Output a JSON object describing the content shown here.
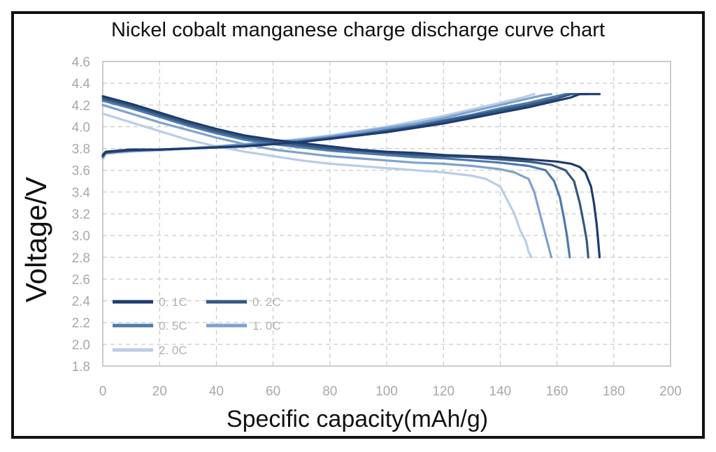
{
  "chart_data": {
    "type": "line",
    "title": "Nickel cobalt manganese charge discharge curve chart",
    "xlabel": "Specific capacity(mAh/g)",
    "ylabel": "Voltage/V",
    "xlim": [
      0,
      200
    ],
    "ylim": [
      1.8,
      4.6
    ],
    "xticks": [
      0,
      20,
      40,
      60,
      80,
      100,
      120,
      140,
      160,
      180,
      200
    ],
    "yticks": [
      1.8,
      2.0,
      2.2,
      2.4,
      2.6,
      2.8,
      3.0,
      3.2,
      3.4,
      3.6,
      3.8,
      4.0,
      4.2,
      4.4,
      4.6
    ],
    "grid": true,
    "legend_position": "bottom-left",
    "series": [
      {
        "name": "0. 1C",
        "color": "#1e3b6f",
        "discharge": [
          [
            0,
            4.28
          ],
          [
            10,
            4.21
          ],
          [
            20,
            4.13
          ],
          [
            30,
            4.05
          ],
          [
            40,
            3.98
          ],
          [
            50,
            3.92
          ],
          [
            60,
            3.88
          ],
          [
            70,
            3.85
          ],
          [
            80,
            3.82
          ],
          [
            90,
            3.79
          ],
          [
            100,
            3.77
          ],
          [
            110,
            3.76
          ],
          [
            120,
            3.74
          ],
          [
            130,
            3.73
          ],
          [
            140,
            3.72
          ],
          [
            150,
            3.7
          ],
          [
            160,
            3.68
          ],
          [
            165,
            3.66
          ],
          [
            168,
            3.63
          ],
          [
            170,
            3.58
          ],
          [
            172,
            3.45
          ],
          [
            173,
            3.3
          ],
          [
            174,
            3.1
          ],
          [
            174.5,
            2.95
          ],
          [
            175,
            2.8
          ]
        ],
        "charge": [
          [
            0,
            3.74
          ],
          [
            1,
            3.77
          ],
          [
            5,
            3.78
          ],
          [
            10,
            3.79
          ],
          [
            20,
            3.79
          ],
          [
            30,
            3.8
          ],
          [
            40,
            3.81
          ],
          [
            50,
            3.82
          ],
          [
            60,
            3.84
          ],
          [
            70,
            3.86
          ],
          [
            80,
            3.89
          ],
          [
            90,
            3.92
          ],
          [
            100,
            3.95
          ],
          [
            110,
            3.99
          ],
          [
            120,
            4.03
          ],
          [
            130,
            4.08
          ],
          [
            140,
            4.13
          ],
          [
            150,
            4.18
          ],
          [
            160,
            4.24
          ],
          [
            165,
            4.27
          ],
          [
            168,
            4.3
          ],
          [
            175,
            4.3
          ]
        ]
      },
      {
        "name": "0. 2C",
        "color": "#34597f",
        "discharge": [
          [
            0,
            4.26
          ],
          [
            10,
            4.19
          ],
          [
            20,
            4.11
          ],
          [
            30,
            4.03
          ],
          [
            40,
            3.96
          ],
          [
            50,
            3.9
          ],
          [
            60,
            3.86
          ],
          [
            70,
            3.83
          ],
          [
            80,
            3.8
          ],
          [
            90,
            3.78
          ],
          [
            100,
            3.76
          ],
          [
            110,
            3.74
          ],
          [
            120,
            3.73
          ],
          [
            130,
            3.72
          ],
          [
            140,
            3.7
          ],
          [
            150,
            3.68
          ],
          [
            158,
            3.65
          ],
          [
            163,
            3.6
          ],
          [
            166,
            3.5
          ],
          [
            168,
            3.3
          ],
          [
            169.5,
            3.1
          ],
          [
            170.5,
            2.95
          ],
          [
            171,
            2.8
          ]
        ],
        "charge": [
          [
            0,
            3.73
          ],
          [
            1,
            3.76
          ],
          [
            5,
            3.77
          ],
          [
            10,
            3.78
          ],
          [
            20,
            3.79
          ],
          [
            30,
            3.8
          ],
          [
            40,
            3.81
          ],
          [
            50,
            3.82
          ],
          [
            60,
            3.84
          ],
          [
            70,
            3.86
          ],
          [
            80,
            3.89
          ],
          [
            90,
            3.92
          ],
          [
            100,
            3.96
          ],
          [
            110,
            4.0
          ],
          [
            120,
            4.05
          ],
          [
            130,
            4.1
          ],
          [
            140,
            4.15
          ],
          [
            150,
            4.2
          ],
          [
            160,
            4.26
          ],
          [
            165,
            4.3
          ],
          [
            171,
            4.3
          ]
        ]
      },
      {
        "name": "0. 5C",
        "color": "#4d79ad",
        "discharge": [
          [
            0,
            4.24
          ],
          [
            10,
            4.17
          ],
          [
            20,
            4.09
          ],
          [
            30,
            4.01
          ],
          [
            40,
            3.94
          ],
          [
            50,
            3.88
          ],
          [
            60,
            3.84
          ],
          [
            70,
            3.81
          ],
          [
            80,
            3.78
          ],
          [
            90,
            3.76
          ],
          [
            100,
            3.74
          ],
          [
            110,
            3.72
          ],
          [
            120,
            3.71
          ],
          [
            130,
            3.69
          ],
          [
            140,
            3.67
          ],
          [
            150,
            3.64
          ],
          [
            156,
            3.6
          ],
          [
            159,
            3.5
          ],
          [
            161,
            3.35
          ],
          [
            162.5,
            3.15
          ],
          [
            163.5,
            3.0
          ],
          [
            164,
            2.9
          ],
          [
            164.5,
            2.8
          ]
        ],
        "charge": [
          [
            0,
            3.72
          ],
          [
            1,
            3.76
          ],
          [
            5,
            3.77
          ],
          [
            10,
            3.78
          ],
          [
            20,
            3.79
          ],
          [
            30,
            3.8
          ],
          [
            40,
            3.81
          ],
          [
            50,
            3.83
          ],
          [
            60,
            3.85
          ],
          [
            70,
            3.87
          ],
          [
            80,
            3.9
          ],
          [
            90,
            3.93
          ],
          [
            100,
            3.97
          ],
          [
            110,
            4.01
          ],
          [
            120,
            4.06
          ],
          [
            130,
            4.11
          ],
          [
            140,
            4.17
          ],
          [
            150,
            4.22
          ],
          [
            158,
            4.27
          ],
          [
            163,
            4.3
          ],
          [
            165,
            4.3
          ]
        ]
      },
      {
        "name": "1. 0C",
        "color": "#7fa2cf",
        "discharge": [
          [
            0,
            4.2
          ],
          [
            10,
            4.12
          ],
          [
            20,
            4.04
          ],
          [
            30,
            3.97
          ],
          [
            40,
            3.9
          ],
          [
            50,
            3.84
          ],
          [
            60,
            3.79
          ],
          [
            70,
            3.76
          ],
          [
            80,
            3.73
          ],
          [
            90,
            3.71
          ],
          [
            100,
            3.69
          ],
          [
            110,
            3.67
          ],
          [
            120,
            3.66
          ],
          [
            130,
            3.64
          ],
          [
            140,
            3.61
          ],
          [
            145,
            3.58
          ],
          [
            150,
            3.52
          ],
          [
            152,
            3.4
          ],
          [
            154,
            3.2
          ],
          [
            156,
            3.0
          ],
          [
            157,
            2.9
          ],
          [
            158,
            2.8
          ]
        ],
        "charge": [
          [
            0,
            3.72
          ],
          [
            1,
            3.76
          ],
          [
            5,
            3.77
          ],
          [
            10,
            3.78
          ],
          [
            20,
            3.79
          ],
          [
            30,
            3.8
          ],
          [
            40,
            3.82
          ],
          [
            50,
            3.84
          ],
          [
            60,
            3.86
          ],
          [
            70,
            3.88
          ],
          [
            80,
            3.91
          ],
          [
            90,
            3.95
          ],
          [
            100,
            3.99
          ],
          [
            110,
            4.03
          ],
          [
            120,
            4.08
          ],
          [
            130,
            4.14
          ],
          [
            140,
            4.2
          ],
          [
            150,
            4.26
          ],
          [
            155,
            4.29
          ],
          [
            158,
            4.3
          ]
        ]
      },
      {
        "name": "2. 0C",
        "color": "#b9cde6",
        "discharge": [
          [
            0,
            4.12
          ],
          [
            10,
            4.04
          ],
          [
            20,
            3.96
          ],
          [
            30,
            3.88
          ],
          [
            40,
            3.82
          ],
          [
            50,
            3.77
          ],
          [
            60,
            3.73
          ],
          [
            70,
            3.69
          ],
          [
            80,
            3.66
          ],
          [
            90,
            3.64
          ],
          [
            100,
            3.62
          ],
          [
            110,
            3.6
          ],
          [
            120,
            3.58
          ],
          [
            130,
            3.55
          ],
          [
            135,
            3.52
          ],
          [
            140,
            3.45
          ],
          [
            142,
            3.35
          ],
          [
            145,
            3.2
          ],
          [
            147,
            3.05
          ],
          [
            149,
            2.95
          ],
          [
            150,
            2.85
          ],
          [
            151,
            2.8
          ]
        ],
        "charge": [
          [
            0,
            3.7
          ],
          [
            1,
            3.75
          ],
          [
            5,
            3.76
          ],
          [
            10,
            3.77
          ],
          [
            20,
            3.78
          ],
          [
            30,
            3.8
          ],
          [
            40,
            3.82
          ],
          [
            50,
            3.84
          ],
          [
            60,
            3.86
          ],
          [
            70,
            3.89
          ],
          [
            80,
            3.92
          ],
          [
            90,
            3.96
          ],
          [
            100,
            4.0
          ],
          [
            110,
            4.05
          ],
          [
            120,
            4.1
          ],
          [
            130,
            4.16
          ],
          [
            140,
            4.22
          ],
          [
            148,
            4.27
          ],
          [
            152,
            4.3
          ]
        ]
      }
    ]
  }
}
